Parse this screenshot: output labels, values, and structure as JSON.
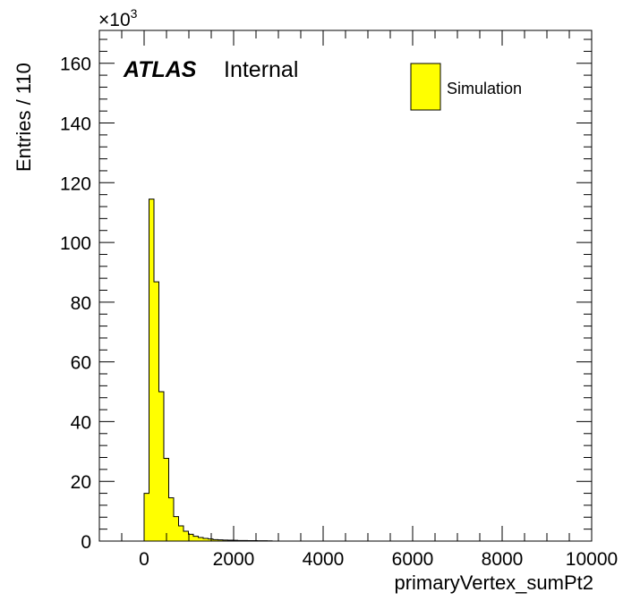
{
  "chart_data": {
    "type": "bar",
    "xlabel": "primaryVertex_sumPt2",
    "ylabel": "Entries / 110",
    "y_exponent_base": "×10",
    "y_exponent_power": "3",
    "xlim": [
      -1000,
      10000
    ],
    "ylim": [
      0,
      171
    ],
    "x_ticks": [
      "0",
      "2000",
      "4000",
      "6000",
      "8000",
      "10000"
    ],
    "y_ticks": [
      "0",
      "20",
      "40",
      "60",
      "80",
      "100",
      "120",
      "140",
      "160"
    ],
    "bin_width": 110,
    "bin_start": 0,
    "series": [
      {
        "name": "Simulation",
        "color": "#ffff00",
        "values": [
          16,
          114.5,
          86.8,
          50,
          27.7,
          14.5,
          8.2,
          5.1,
          3.3,
          2.3,
          1.6,
          1.2,
          0.9,
          0.7,
          0.5,
          0.4,
          0.35,
          0.3,
          0.25,
          0.2,
          0.18,
          0.16,
          0.14,
          0.12,
          0.1,
          0.09
        ]
      }
    ],
    "legend": {
      "position": "top-right",
      "entries": [
        "Simulation"
      ]
    },
    "grid": false
  },
  "labels": {
    "atlas": "ATLAS",
    "internal": "Internal"
  }
}
